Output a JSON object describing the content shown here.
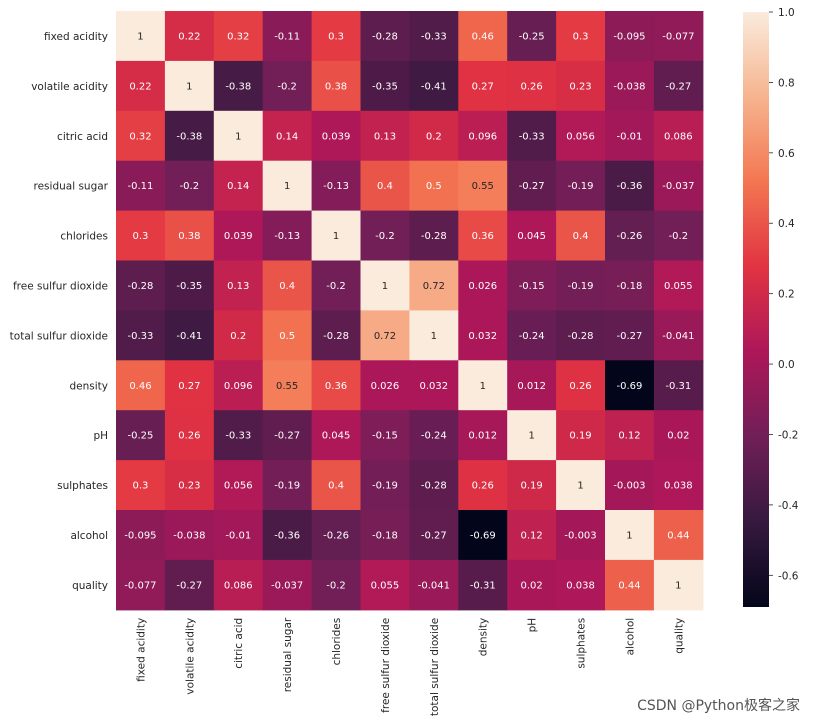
{
  "chart_data": {
    "type": "heatmap",
    "title": "",
    "variables": [
      "fixed acidity",
      "volatile acidity",
      "citric acid",
      "residual sugar",
      "chlorides",
      "free sulfur dioxide",
      "total sulfur dioxide",
      "density",
      "pH",
      "sulphates",
      "alcohol",
      "quality"
    ],
    "values": [
      [
        1,
        0.22,
        0.32,
        -0.11,
        0.3,
        -0.28,
        -0.33,
        0.46,
        -0.25,
        0.3,
        -0.095,
        -0.077
      ],
      [
        0.22,
        1,
        -0.38,
        -0.2,
        0.38,
        -0.35,
        -0.41,
        0.27,
        0.26,
        0.23,
        -0.038,
        -0.27
      ],
      [
        0.32,
        -0.38,
        1,
        0.14,
        0.039,
        0.13,
        0.2,
        0.096,
        -0.33,
        0.056,
        -0.01,
        0.086
      ],
      [
        -0.11,
        -0.2,
        0.14,
        1,
        -0.13,
        0.4,
        0.5,
        0.55,
        -0.27,
        -0.19,
        -0.36,
        -0.037
      ],
      [
        0.3,
        0.38,
        0.039,
        -0.13,
        1,
        -0.2,
        -0.28,
        0.36,
        0.045,
        0.4,
        -0.26,
        -0.2
      ],
      [
        -0.28,
        -0.35,
        0.13,
        0.4,
        -0.2,
        1,
        0.72,
        0.026,
        -0.15,
        -0.19,
        -0.18,
        0.055
      ],
      [
        -0.33,
        -0.41,
        0.2,
        0.5,
        -0.28,
        0.72,
        1,
        0.032,
        -0.24,
        -0.28,
        -0.27,
        -0.041
      ],
      [
        0.46,
        0.27,
        0.096,
        0.55,
        0.36,
        0.026,
        0.032,
        1,
        0.012,
        0.26,
        -0.69,
        -0.31
      ],
      [
        -0.25,
        0.26,
        -0.33,
        -0.27,
        0.045,
        -0.15,
        -0.24,
        0.012,
        1,
        0.19,
        0.12,
        0.02
      ],
      [
        0.3,
        0.23,
        0.056,
        -0.19,
        0.4,
        -0.19,
        -0.28,
        0.26,
        0.19,
        1,
        -0.003,
        0.038
      ],
      [
        -0.095,
        -0.038,
        -0.01,
        -0.36,
        -0.26,
        -0.18,
        -0.27,
        -0.69,
        0.12,
        -0.003,
        1,
        0.44
      ],
      [
        -0.077,
        -0.27,
        0.086,
        -0.037,
        -0.2,
        0.055,
        -0.041,
        -0.31,
        0.02,
        0.038,
        0.44,
        1
      ]
    ],
    "colorbar": {
      "vmin": -0.69,
      "vmax": 1.0,
      "ticks": [
        1.0,
        0.8,
        0.6,
        0.4,
        0.2,
        0.0,
        -0.2,
        -0.4,
        -0.6
      ],
      "tick_labels": [
        "1.0",
        "0.8",
        "0.6",
        "0.4",
        "0.2",
        "0.0",
        "-0.2",
        "-0.4",
        "-0.6"
      ],
      "colormap": "rocket"
    },
    "xlabel": "",
    "ylabel": ""
  },
  "colormap_stops": [
    "#03051a",
    "#36193e",
    "#701f57",
    "#ad1759",
    "#e13342",
    "#f37651",
    "#f6b48f",
    "#faebdd"
  ],
  "watermark": "CSDN @Python极客之家"
}
